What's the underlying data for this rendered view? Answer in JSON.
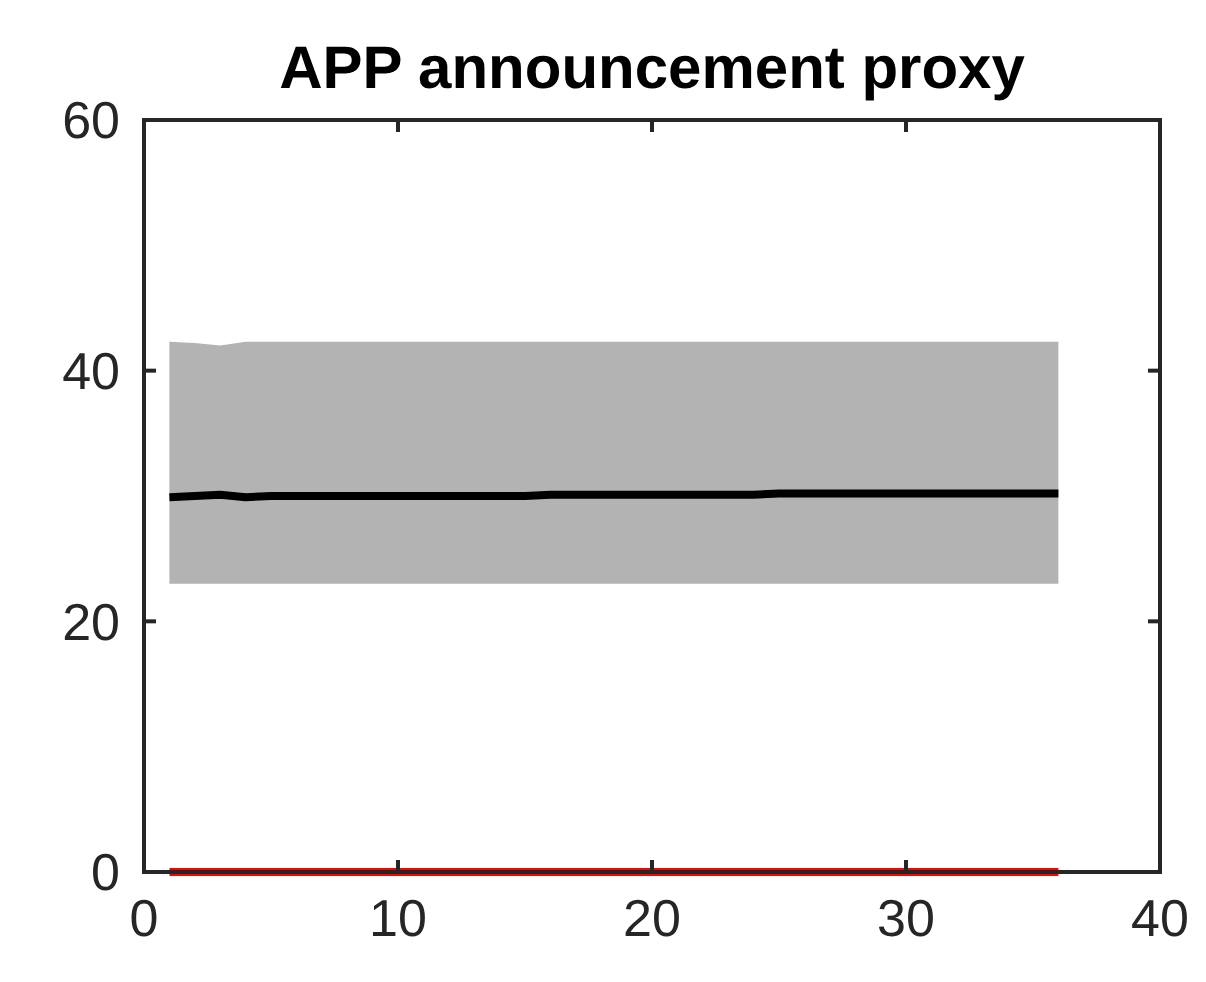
{
  "chart_data": {
    "type": "line",
    "title": "APP announcement proxy",
    "x": [
      1,
      2,
      3,
      4,
      5,
      6,
      7,
      8,
      9,
      10,
      11,
      12,
      13,
      14,
      15,
      16,
      17,
      18,
      19,
      20,
      21,
      22,
      23,
      24,
      25,
      26,
      27,
      28,
      29,
      30,
      31,
      32,
      33,
      34,
      35,
      36
    ],
    "series": [
      {
        "color": "#000000",
        "values": [
          29.9,
          30.0,
          30.1,
          29.9,
          30.0,
          30.0,
          30.0,
          30.0,
          30.0,
          30.0,
          30.0,
          30.0,
          30.0,
          30.0,
          30.0,
          30.1,
          30.1,
          30.1,
          30.1,
          30.1,
          30.1,
          30.1,
          30.1,
          30.1,
          30.2,
          30.2,
          30.2,
          30.2,
          30.2,
          30.2,
          30.2,
          30.2,
          30.2,
          30.2,
          30.2,
          30.2
        ],
        "lower": [
          23.0,
          23.0,
          23.0,
          23.0,
          23.0,
          23.0,
          23.0,
          23.0,
          23.0,
          23.0,
          23.0,
          23.0,
          23.0,
          23.0,
          23.0,
          23.0,
          23.0,
          23.0,
          23.0,
          23.0,
          23.0,
          23.0,
          23.0,
          23.0,
          23.0,
          23.0,
          23.0,
          23.0,
          23.0,
          23.0,
          23.0,
          23.0,
          23.0,
          23.0,
          23.0,
          23.0
        ],
        "upper": [
          42.3,
          42.2,
          42.0,
          42.3,
          42.3,
          42.3,
          42.3,
          42.3,
          42.3,
          42.3,
          42.3,
          42.3,
          42.3,
          42.3,
          42.3,
          42.3,
          42.3,
          42.3,
          42.3,
          42.3,
          42.3,
          42.3,
          42.3,
          42.3,
          42.3,
          42.3,
          42.3,
          42.3,
          42.3,
          42.3,
          42.3,
          42.3,
          42.3,
          42.3,
          42.3,
          42.3
        ]
      },
      {
        "color": "#ff0000",
        "values": [
          0,
          0,
          0,
          0,
          0,
          0,
          0,
          0,
          0,
          0,
          0,
          0,
          0,
          0,
          0,
          0,
          0,
          0,
          0,
          0,
          0,
          0,
          0,
          0,
          0,
          0,
          0,
          0,
          0,
          0,
          0,
          0,
          0,
          0,
          0,
          0
        ]
      }
    ],
    "xlim": [
      0,
      40
    ],
    "xticks": [
      0,
      10,
      20,
      30,
      40
    ],
    "ylim": [
      0,
      60
    ],
    "yticks": [
      0,
      20,
      40,
      60
    ],
    "grid": false,
    "line_style": "solid",
    "marker": "none"
  }
}
